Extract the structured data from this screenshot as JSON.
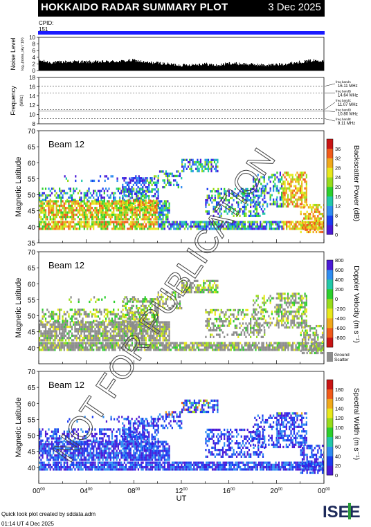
{
  "header": {
    "title": "HOKKAIDO RADAR SUMMARY PLOT",
    "date": "3 Dec 2025"
  },
  "cpid": {
    "label": "CPID:",
    "value": "151",
    "bar_color": "#1a1aff"
  },
  "watermark": "NOT FOR PUBLICATION",
  "footer": {
    "credit": "Quick look plot created by sddata.adm",
    "timestamp": "01:14 UT  4 Dec 2025",
    "logo_text": "ISEE"
  },
  "chart_data": [
    {
      "type": "area",
      "panel": "noise",
      "ylabel": "Noise Level",
      "ylabel_sub": "log₁₀(noise_sky / 10³)",
      "y_ticks": [
        "0",
        "2",
        "4",
        "6",
        "8",
        "10"
      ],
      "ylim": [
        0,
        10
      ],
      "x": [
        0,
        1,
        2,
        3,
        4,
        5,
        6,
        7,
        8,
        9,
        10,
        11,
        12,
        13,
        14,
        15,
        16,
        17,
        18,
        19,
        20,
        21,
        22,
        23,
        24
      ],
      "values": [
        3,
        2.4,
        2.6,
        2.7,
        2.6,
        2.6,
        2.7,
        2.8,
        3.1,
        2.4,
        2.3,
        1.9,
        1.6,
        1.8,
        2.0,
        1.5,
        2.2,
        2.0,
        1.8,
        1.6,
        1.8,
        2.1,
        2.6,
        3.0,
        3.1
      ],
      "color": "#000000"
    },
    {
      "type": "line",
      "panel": "frequency",
      "ylabel": "Frequency",
      "ylabel_unit": "(MHz)",
      "y_ticks": [
        "8",
        "10",
        "12",
        "14",
        "16",
        "18"
      ],
      "ylim": [
        8,
        18
      ],
      "bands": [
        {
          "label": "freq bandA",
          "mhz": "16.11 MHz",
          "value": 16.11
        },
        {
          "label": "freq bandB",
          "mhz": "14.64 MHz",
          "value": 14.64
        },
        {
          "label": "freq bandC",
          "mhz": "11.07 MHz",
          "value": 11.07
        },
        {
          "label": "freq bandD",
          "mhz": "10.80 MHz",
          "value": 10.8
        },
        {
          "label": "freq bandE",
          "mhz": "9.11 MHz",
          "value": 9.11
        }
      ]
    },
    {
      "type": "heatmap",
      "panel": "power",
      "beam_label": "Beam 12",
      "ylabel": "Magnetic Latitude",
      "y_ticks": [
        "35",
        "40",
        "45",
        "50",
        "55",
        "60",
        "65",
        "70"
      ],
      "ylim": [
        35,
        70
      ],
      "colorbar_label": "Backscatter Power (dB)",
      "colorbar_ticks": [
        "0",
        "4",
        "8",
        "12",
        "16",
        "20",
        "24",
        "28",
        "32",
        "36"
      ],
      "colors": [
        "#4a19d6",
        "#1b3cf0",
        "#2f8cf0",
        "#22c8a8",
        "#2ccf2c",
        "#98dc1a",
        "#e8e81a",
        "#f0a81a",
        "#f05a1a",
        "#c81414"
      ]
    },
    {
      "type": "heatmap",
      "panel": "velocity",
      "beam_label": "Beam 12",
      "ylabel": "Magnetic Latitude",
      "y_ticks": [
        "40",
        "45",
        "50",
        "55",
        "60",
        "65",
        "70"
      ],
      "ylim": [
        35,
        70
      ],
      "colorbar_label": "Doppler Velocity (m s⁻¹)",
      "colorbar_ticks": [
        "-800",
        "-600",
        "-400",
        "-200",
        "0",
        "200",
        "400",
        "600",
        "800"
      ],
      "colors": [
        "#c81414",
        "#f05a1a",
        "#f0a81a",
        "#e8e81a",
        "#98dc1a",
        "#2ccf2c",
        "#22c8a8",
        "#2f8cf0",
        "#4a19d6"
      ],
      "ground_label": "Ground Scatter",
      "ground_color": "#8c8c8c"
    },
    {
      "type": "heatmap",
      "panel": "width",
      "beam_label": "Beam 12",
      "ylabel": "Magnetic Latitude",
      "y_ticks": [
        "40",
        "45",
        "50",
        "55",
        "60",
        "65",
        "70"
      ],
      "ylim": [
        35,
        70
      ],
      "colorbar_label": "Spectral Width (m s⁻¹)",
      "colorbar_ticks": [
        "0",
        "20",
        "40",
        "60",
        "80",
        "100",
        "120",
        "140",
        "160",
        "180"
      ],
      "colors": [
        "#4a19d6",
        "#1b3cf0",
        "#2f8cf0",
        "#22c8a8",
        "#2ccf2c",
        "#98dc1a",
        "#e8e81a",
        "#f0a81a",
        "#f05a1a",
        "#c81414"
      ]
    }
  ],
  "x_axis": {
    "label": "UT",
    "ticks": [
      {
        "h": "00",
        "m": "00"
      },
      {
        "h": "04",
        "m": "00"
      },
      {
        "h": "08",
        "m": "00"
      },
      {
        "h": "12",
        "m": "00"
      },
      {
        "h": "16",
        "m": "00"
      },
      {
        "h": "20",
        "m": "00"
      },
      {
        "h": "00",
        "m": "00"
      }
    ]
  }
}
